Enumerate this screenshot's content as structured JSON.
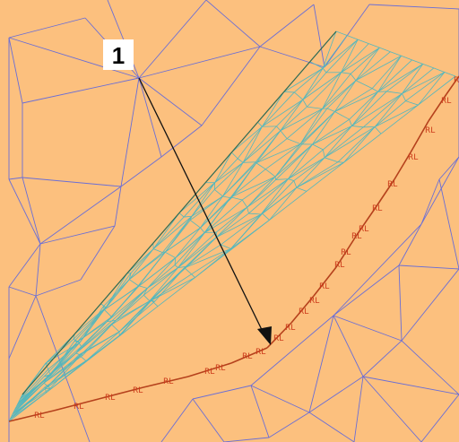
{
  "colors": {
    "background": "#fcc07e",
    "coarse_mesh": "#6a6ed6",
    "fine_mesh": "#52b7be",
    "boundary": "#b5411c",
    "boundary_label": "#cc3a1a",
    "arrow": "#111111"
  },
  "callout": {
    "label": "1"
  },
  "boundary_labels": [
    "RL",
    "RL",
    "RL",
    "RL",
    "RL",
    "RL",
    "RL",
    "RL",
    "RL",
    "RL",
    "RL",
    "RL",
    "RL",
    "RL",
    "RL",
    "RL",
    "RL",
    "RL",
    "RL",
    "RL",
    "RL",
    "RL",
    "RL",
    "RL"
  ]
}
